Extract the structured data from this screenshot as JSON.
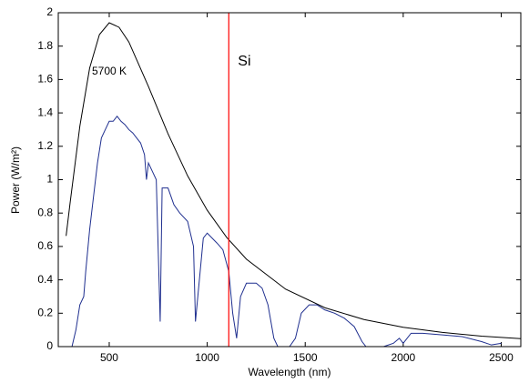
{
  "chart_data": {
    "type": "line",
    "xlabel": "Wavelength (nm)",
    "ylabel": "Power (W/m²)",
    "xlim": [
      240,
      2600
    ],
    "ylim": [
      0,
      2
    ],
    "xticks": [
      500,
      1000,
      1500,
      2000,
      2500
    ],
    "yticks": [
      0,
      0.2,
      0.4,
      0.6,
      0.8,
      1,
      1.2,
      1.4,
      1.6,
      1.8,
      2
    ],
    "grid": false,
    "series": [
      {
        "name": "5700 K",
        "color": "#000000",
        "x": [
          280,
          300,
          350,
          400,
          450,
          500,
          550,
          600,
          700,
          800,
          900,
          1000,
          1100,
          1200,
          1400,
          1600,
          1800,
          2000,
          2200,
          2400,
          2600
        ],
        "values": [
          0.663,
          0.857,
          1.32,
          1.668,
          1.869,
          1.94,
          1.913,
          1.825,
          1.558,
          1.275,
          1.023,
          0.817,
          0.653,
          0.524,
          0.344,
          0.233,
          0.162,
          0.116,
          0.085,
          0.063,
          0.048
        ]
      },
      {
        "color": "#1f2f8f",
        "x": [
          310,
          330,
          350,
          370,
          380,
          400,
          420,
          440,
          460,
          480,
          500,
          520,
          540,
          560,
          580,
          600,
          620,
          640,
          660,
          680,
          690,
          700,
          720,
          740,
          760,
          770,
          800,
          830,
          860,
          900,
          930,
          940,
          960,
          980,
          1000,
          1050,
          1080,
          1110,
          1130,
          1150,
          1170,
          1200,
          1250,
          1280,
          1310,
          1340,
          1360,
          1400,
          1420,
          1450,
          1480,
          1520,
          1560,
          1600,
          1650,
          1700,
          1750,
          1790,
          1810,
          1900,
          1950,
          1980,
          2000,
          2040,
          2100,
          2200,
          2300,
          2400,
          2450,
          2500
        ],
        "values": [
          0,
          0.1,
          0.25,
          0.3,
          0.45,
          0.7,
          0.9,
          1.1,
          1.25,
          1.3,
          1.35,
          1.35,
          1.38,
          1.35,
          1.33,
          1.3,
          1.28,
          1.25,
          1.22,
          1.15,
          1.0,
          1.1,
          1.05,
          1.0,
          0.15,
          0.95,
          0.95,
          0.85,
          0.8,
          0.75,
          0.6,
          0.15,
          0.4,
          0.65,
          0.68,
          0.62,
          0.58,
          0.45,
          0.2,
          0.05,
          0.3,
          0.38,
          0.38,
          0.35,
          0.25,
          0.05,
          0,
          0,
          0,
          0.05,
          0.2,
          0.25,
          0.25,
          0.22,
          0.2,
          0.17,
          0.12,
          0.03,
          0,
          0,
          0.02,
          0.05,
          0.02,
          0.08,
          0.08,
          0.07,
          0.06,
          0.03,
          0.01,
          0.02
        ]
      }
    ],
    "vline": {
      "x": 1110,
      "label": "Si",
      "color": "#ff0000"
    }
  }
}
